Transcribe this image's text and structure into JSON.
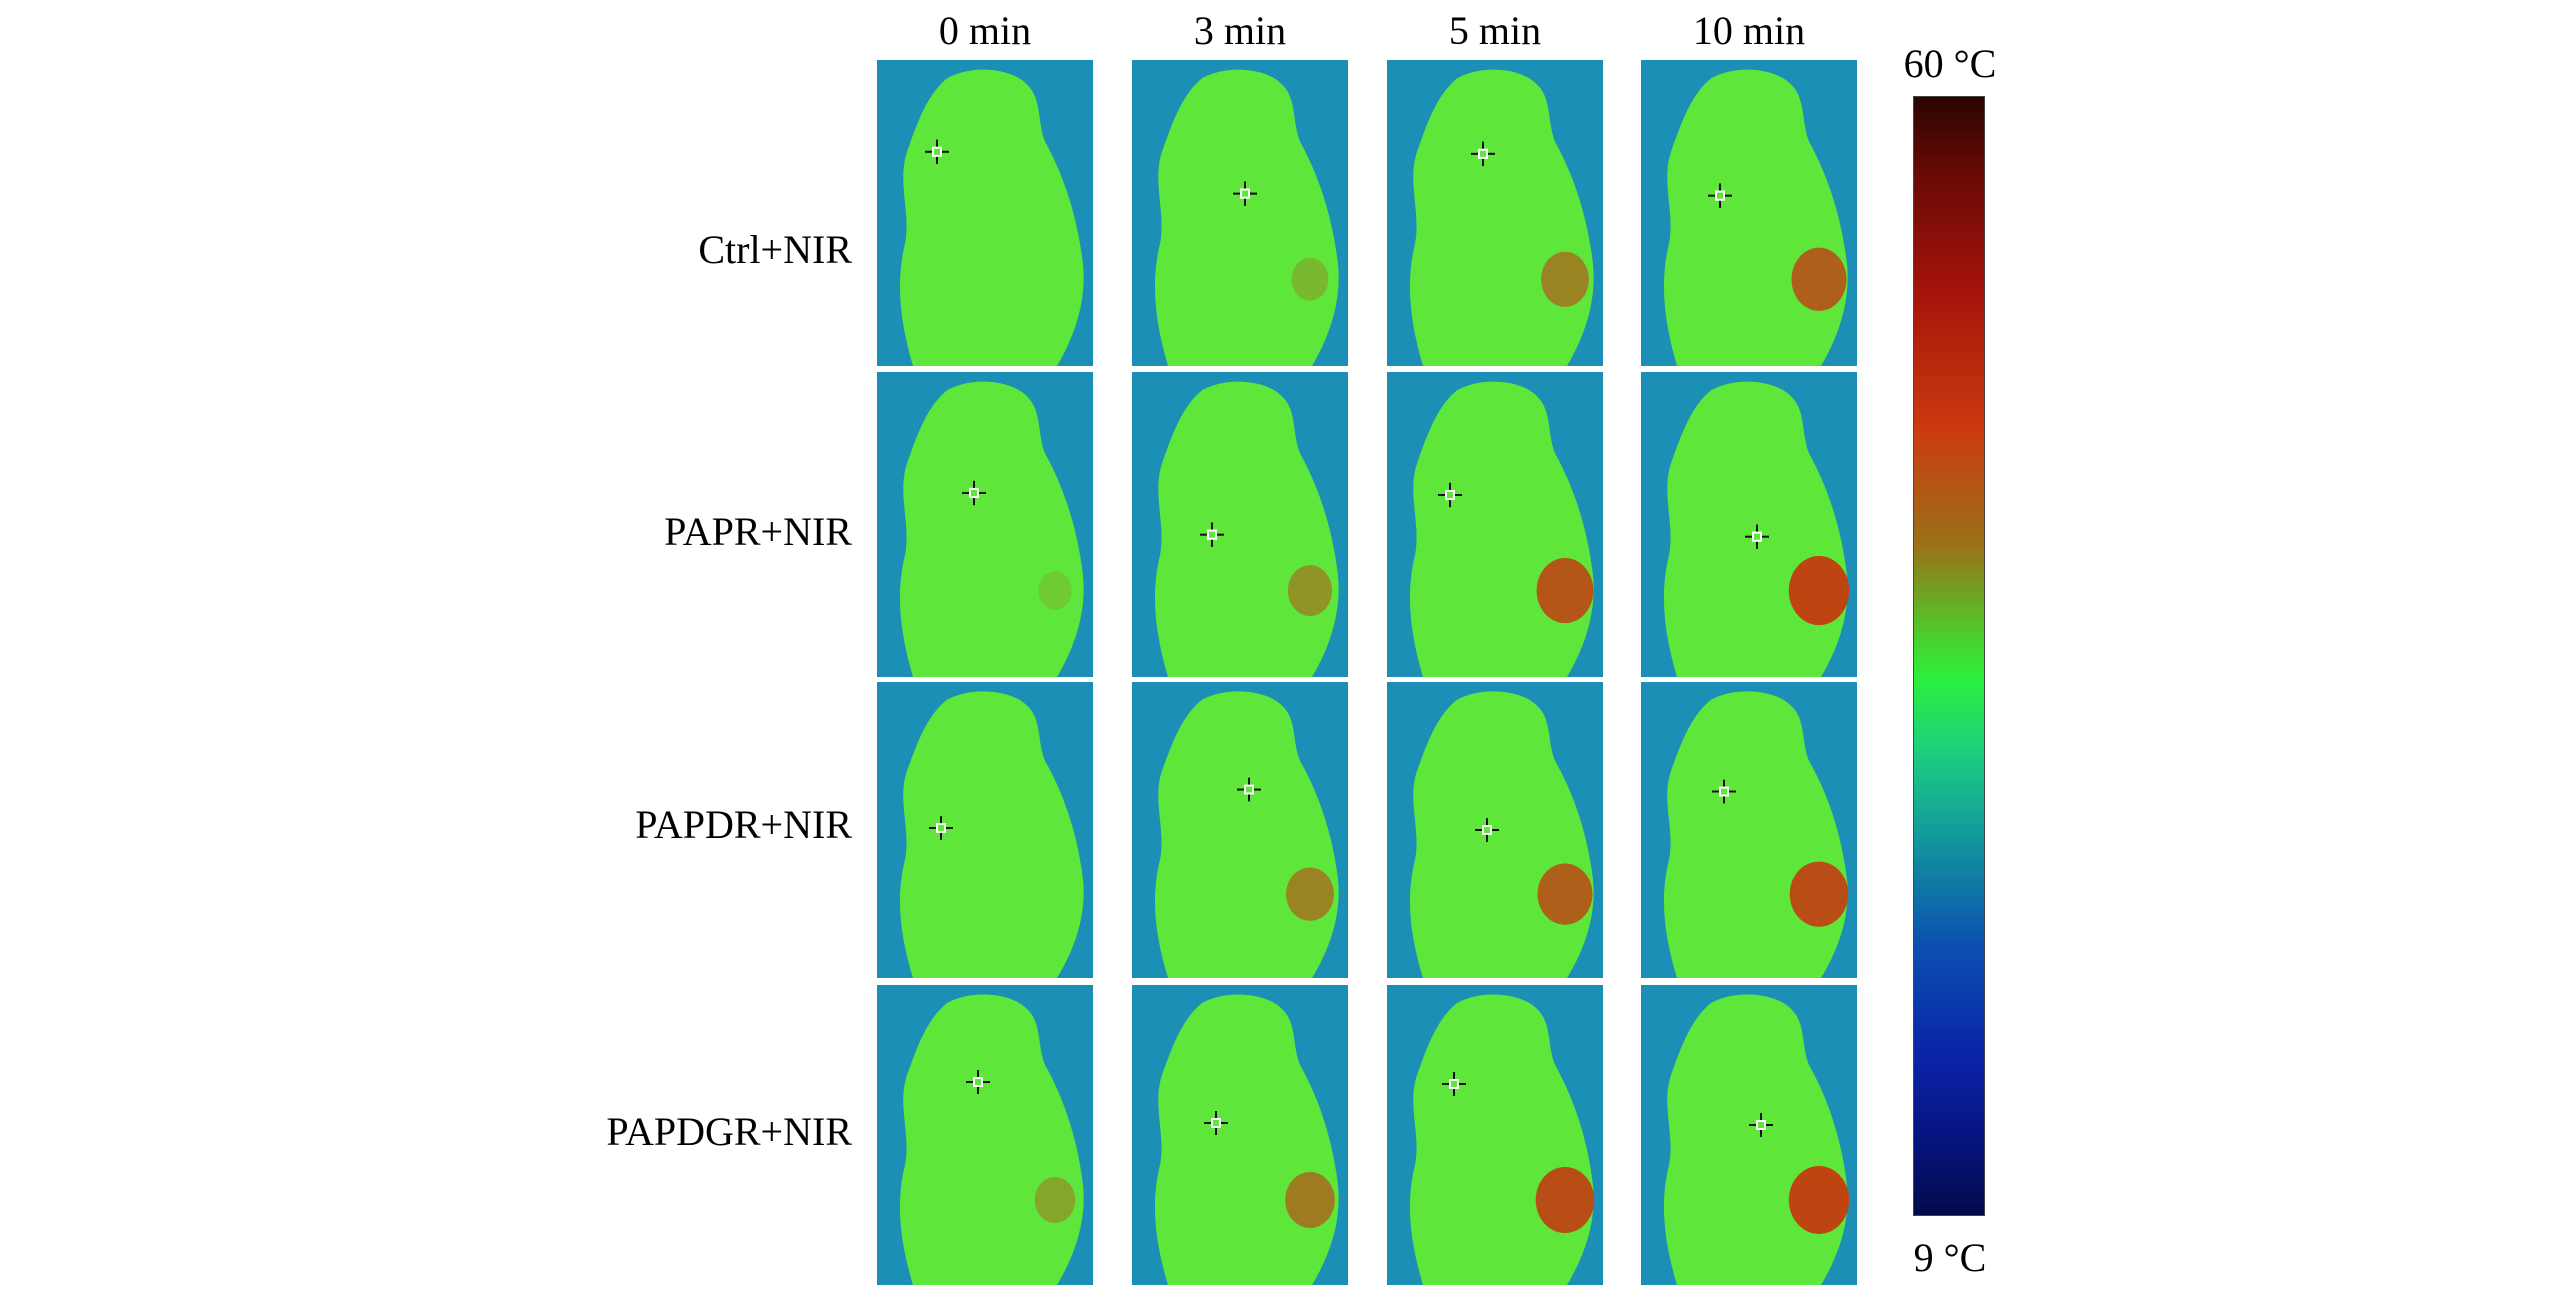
{
  "figure": {
    "time_points": [
      "0 min",
      "3 min",
      "5 min",
      "10 min"
    ],
    "groups": [
      "Ctrl+NIR",
      "PAPR+NIR",
      "PAPDR+NIR",
      "PAPDGR+NIR"
    ],
    "colorbar": {
      "max_label": "60 °C",
      "min_label": "9 °C"
    },
    "colors": {
      "background_cold": "#1c8fb6",
      "body_warm": "#5fe63a",
      "tumor_hot": "#c8320e"
    },
    "tumor_heat_intensity": [
      [
        0.0,
        0.25,
        0.55,
        0.75
      ],
      [
        0.15,
        0.45,
        0.8,
        0.9
      ],
      [
        0.0,
        0.55,
        0.75,
        0.85
      ],
      [
        0.35,
        0.6,
        0.85,
        0.9
      ]
    ]
  }
}
